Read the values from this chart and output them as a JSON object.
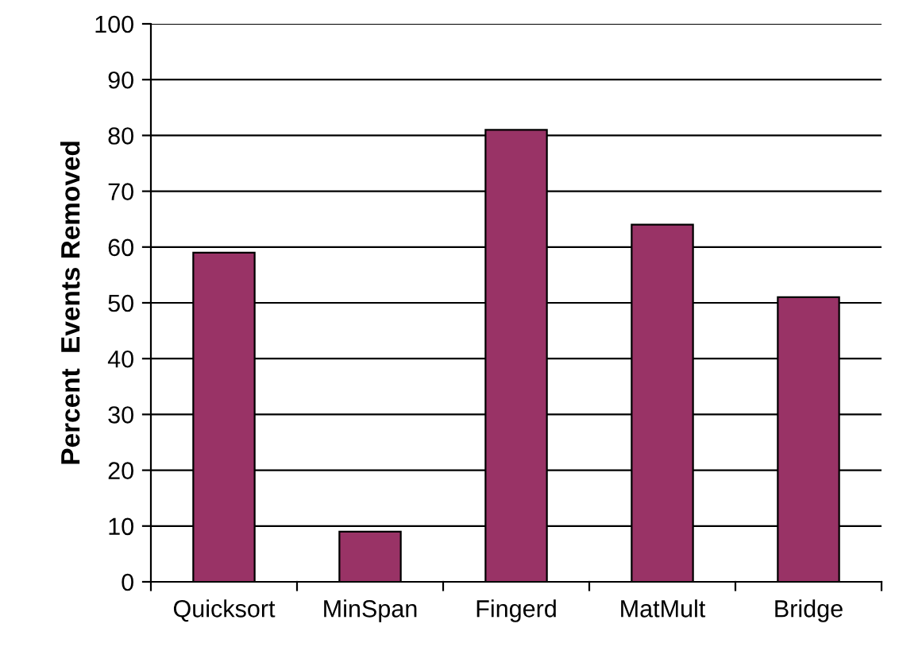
{
  "chart_data": {
    "type": "bar",
    "ylabel": "Percent  Events Removed",
    "categories": [
      "Quicksort",
      "MinSpan",
      "Fingerd",
      "MatMult",
      "Bridge"
    ],
    "values": [
      59,
      9,
      81,
      64,
      51
    ],
    "color": "#993366",
    "ylim": [
      0,
      100
    ],
    "yticks": [
      0,
      10,
      20,
      30,
      40,
      50,
      60,
      70,
      80,
      90,
      100
    ],
    "grid": "y"
  }
}
